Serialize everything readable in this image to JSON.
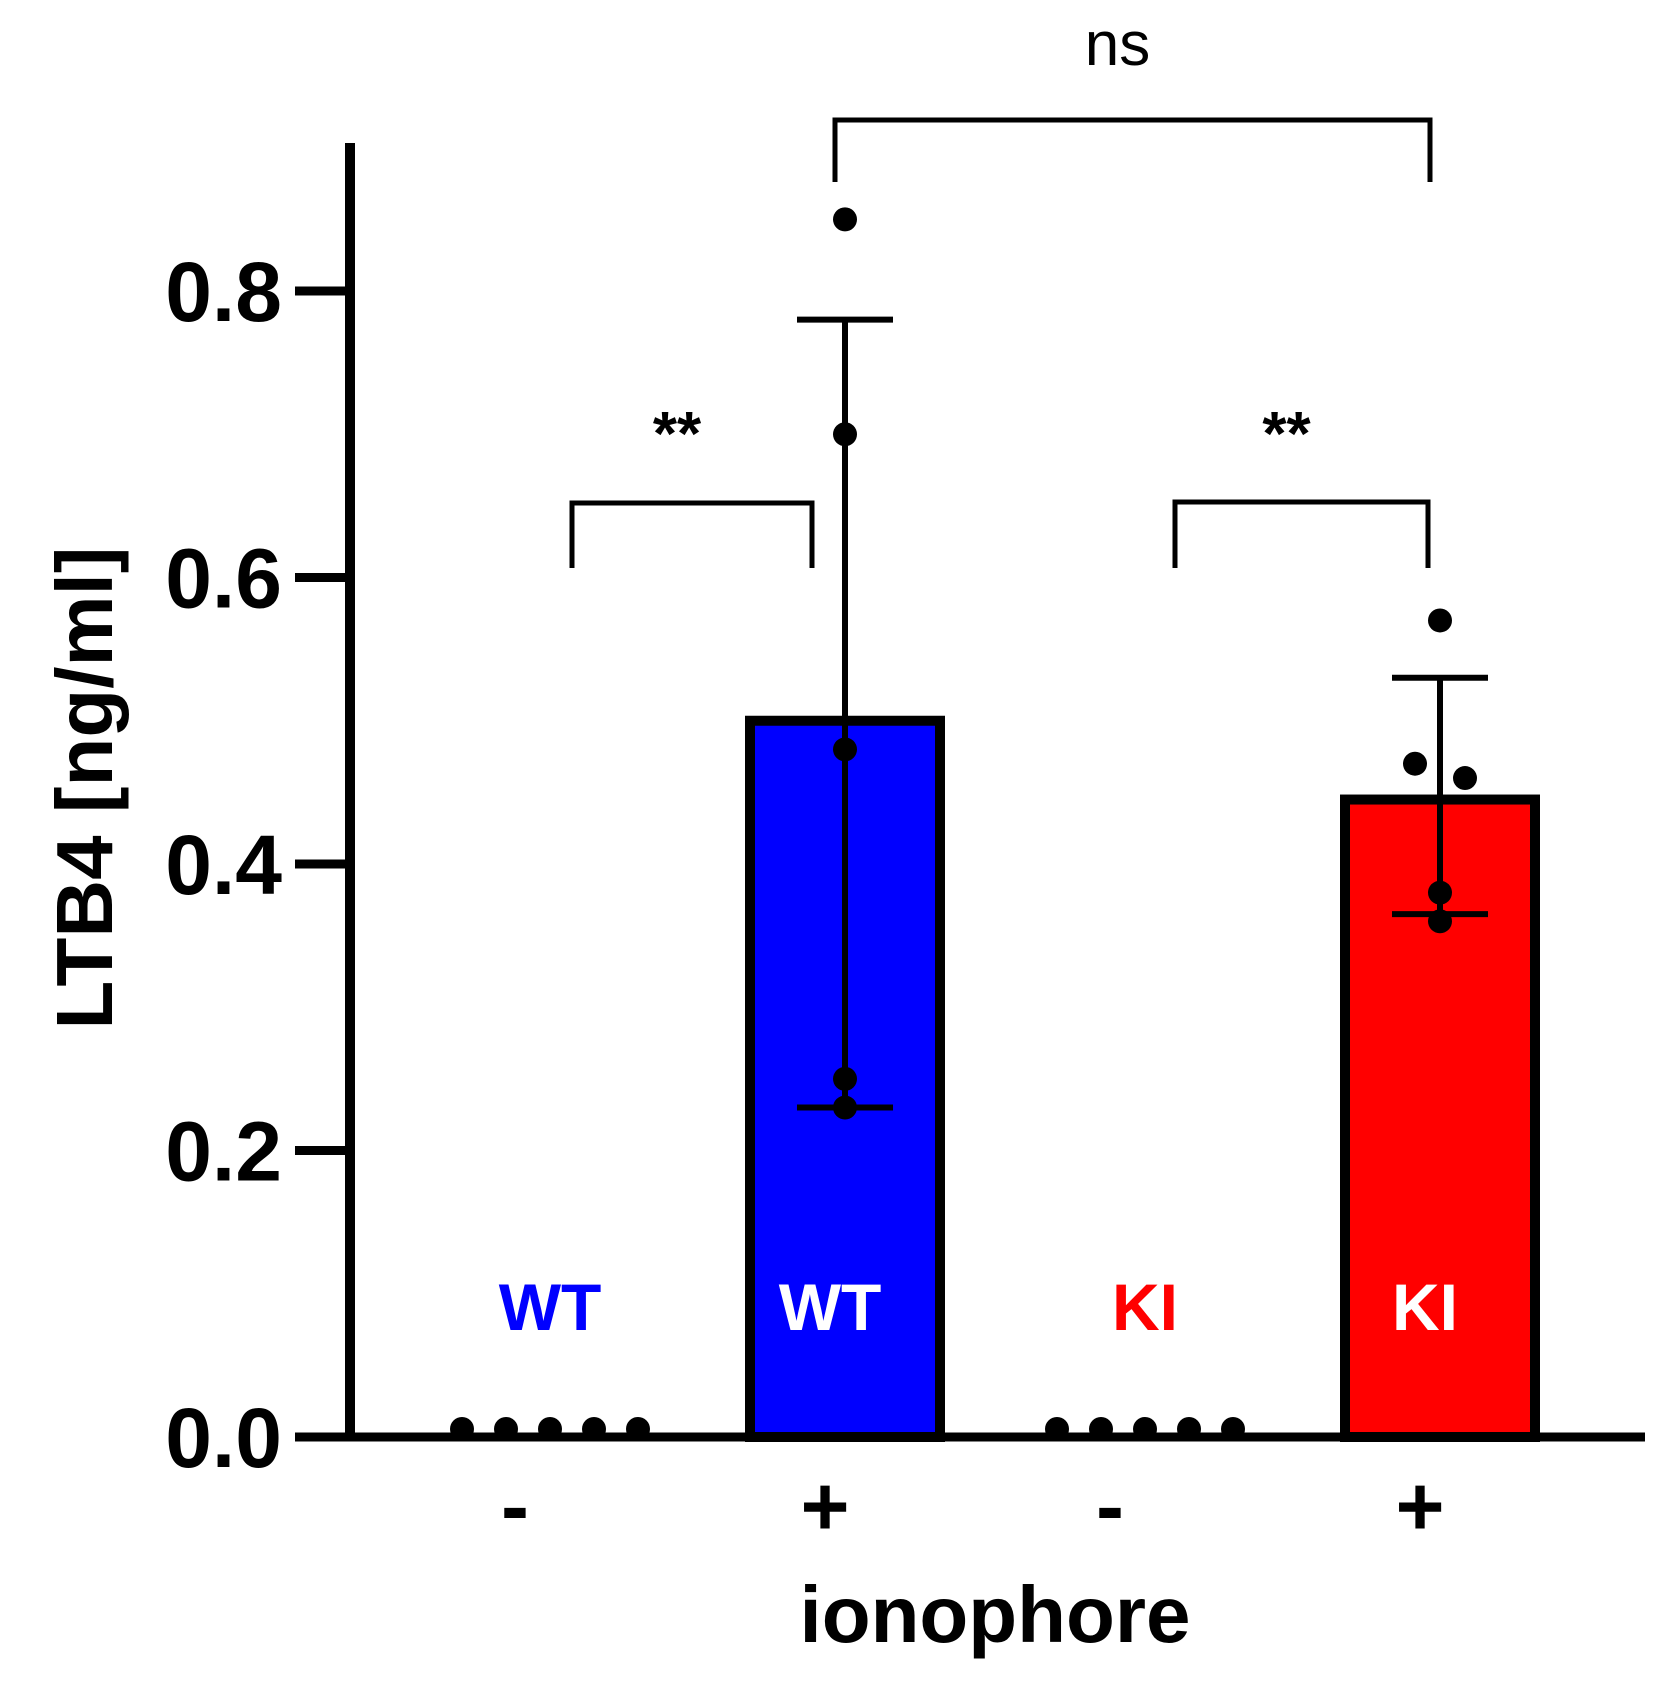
{
  "chart_data": {
    "type": "bar",
    "title": "",
    "xlabel": "ionophore",
    "ylabel": "LTB4  [ng/ml]",
    "ylim": [
      0,
      0.9
    ],
    "yticks": [
      0.0,
      0.2,
      0.4,
      0.6,
      0.8
    ],
    "ytick_labels": [
      "0.0",
      "0.2",
      "0.4",
      "0.6",
      "0.8"
    ],
    "categories": [
      "-",
      "+",
      "-",
      "+"
    ],
    "groups": [
      {
        "label": "WT",
        "ionophore": "-",
        "value": 0.0,
        "error_low": 0.0,
        "error_high": 0.0,
        "color": "#0000ff",
        "label_color": "#0000ff",
        "points": [
          0.0,
          0.0,
          0.0,
          0.0,
          0.0
        ]
      },
      {
        "label": "WT",
        "ionophore": "+",
        "value": 0.5,
        "error_low": 0.23,
        "error_high": 0.78,
        "color": "#0000ff",
        "label_color": "#ffffff",
        "points": [
          0.85,
          0.7,
          0.48,
          0.25,
          0.23
        ]
      },
      {
        "label": "KI",
        "ionophore": "-",
        "value": 0.0,
        "error_low": 0.0,
        "error_high": 0.0,
        "color": "#ff0000",
        "label_color": "#ff0000",
        "points": [
          0.0,
          0.0,
          0.0,
          0.0,
          0.0
        ]
      },
      {
        "label": "KI",
        "ionophore": "+",
        "value": 0.445,
        "error_low": 0.365,
        "error_high": 0.53,
        "color": "#ff0000",
        "label_color": "#ffffff",
        "points": [
          0.57,
          0.47,
          0.46,
          0.38,
          0.36
        ]
      }
    ],
    "comparisons": [
      {
        "between": [
          0,
          1
        ],
        "label": "**"
      },
      {
        "between": [
          2,
          3
        ],
        "label": "**"
      },
      {
        "between": [
          1,
          3
        ],
        "label": "ns"
      }
    ]
  }
}
